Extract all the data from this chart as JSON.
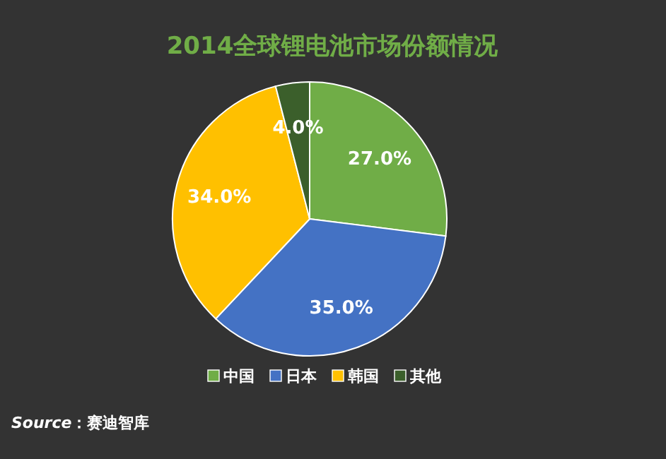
{
  "chart_data": {
    "type": "pie",
    "title": "2014全球锂电池市场份额情况",
    "categories": [
      "中国",
      "日本",
      "韩国",
      "其他"
    ],
    "values": [
      27.0,
      35.0,
      34.0,
      4.0
    ],
    "colors": [
      "#70ad47",
      "#4472c4",
      "#ffc000",
      "#3b5f2b"
    ],
    "value_labels": [
      "27.0%",
      "35.0%",
      "34.0%",
      "4.0%"
    ],
    "legend": "bottom",
    "annotations": [
      "*Source*：赛迪智库"
    ]
  }
}
